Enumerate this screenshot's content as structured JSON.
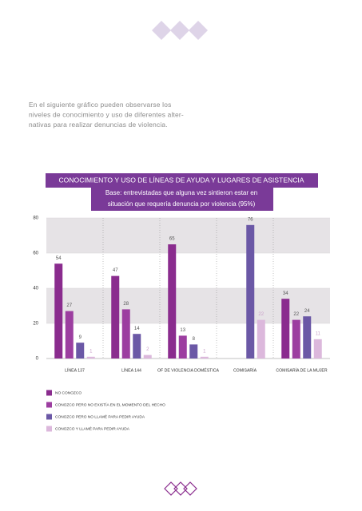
{
  "intro": {
    "lines": [
      "En el siguiente gráfico pueden observarse los",
      "niveles de conocimiento y uso de diferentes alter-",
      "nativas para realizar denuncias de violencia."
    ]
  },
  "chart_data": {
    "type": "bar",
    "title": "CONOCIMIENTO Y USO DE LÍNEAS DE AYUDA Y LUGARES DE ASISTENCIA",
    "subtitle": [
      "Base: entrevistadas que alguna vez sintieron estar en",
      "situación que requería denuncia por violencia (95%)"
    ],
    "categories": [
      "LÍNEA 137",
      "LÍNEA 144",
      "OF DE VIOLENCIA DOMÉSTICA",
      "COMISARÍA",
      "COMISARÍA DE LA MUJER"
    ],
    "series": [
      {
        "name": "NO CONOZCO",
        "color": "#8a2c8e",
        "values": [
          54,
          47,
          65,
          null,
          34
        ]
      },
      {
        "name": "CONOZCO PERO NO EXISTÍA EN EL MOMENTO DEL HECHO",
        "color": "#9c3ea0",
        "values": [
          27,
          28,
          13,
          null,
          22
        ]
      },
      {
        "name": "CONOZCO PERO NO LLAMÉ PARA PEDIR AYUDA",
        "color": "#6b58a6",
        "values": [
          9,
          14,
          8,
          76,
          24
        ]
      },
      {
        "name": "CONOZCO Y LLAMÉ PARA PEDIR AYUDA",
        "color": "#dcb8dc",
        "values": [
          1,
          2,
          1,
          22,
          11
        ]
      }
    ],
    "ylim": [
      0,
      80
    ],
    "yticks": [
      0,
      20,
      40,
      60,
      80
    ],
    "grid": true
  }
}
